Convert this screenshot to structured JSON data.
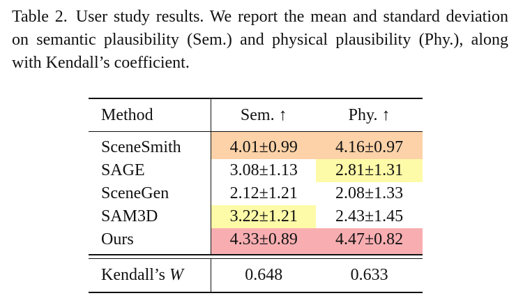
{
  "caption": {
    "label": "Table 2.",
    "text": "User study results. We report the mean and standard deviation on semantic plausibility (Sem.) and physical plausibility (Phy.), along with Kendall’s coefficient."
  },
  "table": {
    "headers": {
      "method": "Method",
      "sem": "Sem. ↑",
      "phy": "Phy. ↑"
    },
    "rows": [
      {
        "method": "SceneSmith",
        "sem": "4.01±0.99",
        "phy": "4.16±0.97"
      },
      {
        "method": "SAGE",
        "sem": "3.08±1.13",
        "phy": "2.81±1.31"
      },
      {
        "method": "SceneGen",
        "sem": "2.12±1.21",
        "phy": "2.08±1.33"
      },
      {
        "method": "SAM3D",
        "sem": "3.22±1.21",
        "phy": "2.43±1.45"
      },
      {
        "method": "Ours",
        "sem": "4.33±0.89",
        "phy": "4.47±0.82"
      }
    ],
    "summary": {
      "label": "Kendall’s",
      "symbol": "W",
      "sem": "0.648",
      "phy": "0.633"
    },
    "highlight_colors": {
      "best": "#f8aeb1",
      "second": "#fdd2a8",
      "third": "#fdfaa8"
    }
  }
}
